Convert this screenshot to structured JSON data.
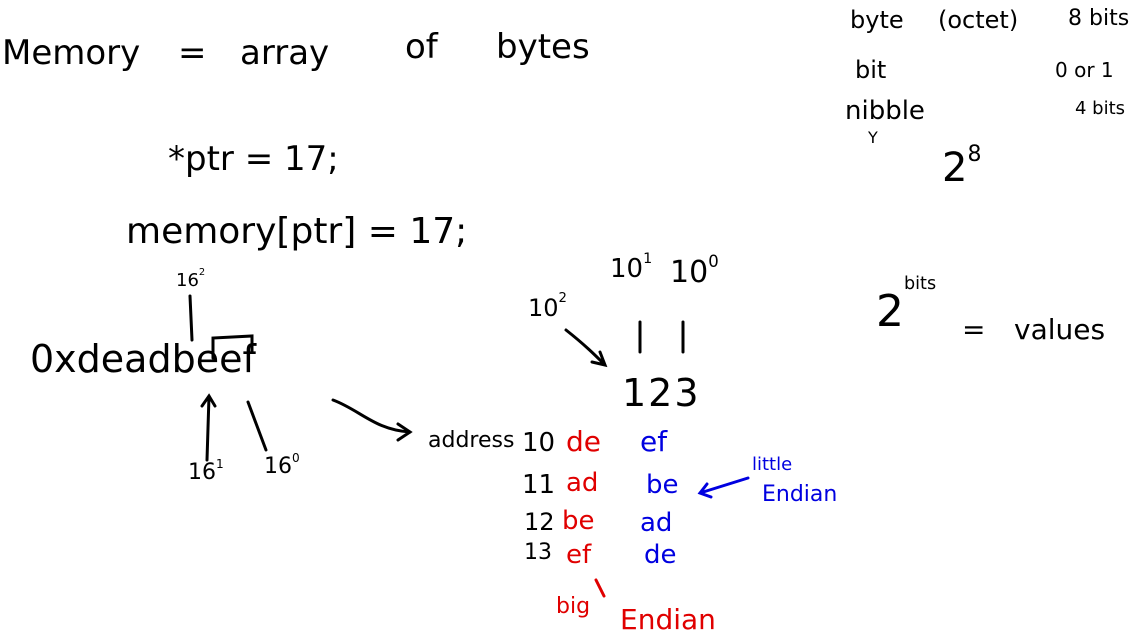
{
  "title": {
    "memory": "Memory",
    "eq": "=",
    "array": "array",
    "of": "of",
    "bytes": "bytes"
  },
  "definitions": {
    "byte": "byte",
    "octet": "(octet)",
    "byte_size": "8 bits",
    "bit": "bit",
    "bit_values": "0 or 1",
    "nibble": "nibble",
    "nibble_mark": "Y",
    "nibble_size": "4 bits",
    "power_base": "2",
    "power_exp": "8"
  },
  "code": {
    "deref": "*ptr  =  17;",
    "index": "memory[ptr] = 17;"
  },
  "hex": {
    "value": "0xdeadbeef",
    "place_2": "16",
    "exp_2": "2",
    "place_1": "16",
    "exp_1": "1",
    "place_0": "16",
    "exp_0": "0"
  },
  "decimal": {
    "p2": "10",
    "e2": "2",
    "p1": "10",
    "e1": "1",
    "p0": "10",
    "e0": "0",
    "number": "123"
  },
  "formula": {
    "base": "2",
    "exp": "bits",
    "eq": "=",
    "rhs": "values"
  },
  "address_label": "address",
  "memory_rows": [
    {
      "addr": "10",
      "big": "de",
      "little": "ef"
    },
    {
      "addr": "11",
      "big": "ad",
      "little": "be"
    },
    {
      "addr": "12",
      "big": "be",
      "little": "ad"
    },
    {
      "addr": "13",
      "big": "ef",
      "little": "de"
    }
  ],
  "little_endian": {
    "line1": "little",
    "line2": "Endian"
  },
  "big_endian": {
    "line1": "big",
    "line2": "Endian"
  },
  "colors": {
    "big_endian": "#e00000",
    "little_endian": "#0000e0",
    "ink": "#000000"
  }
}
